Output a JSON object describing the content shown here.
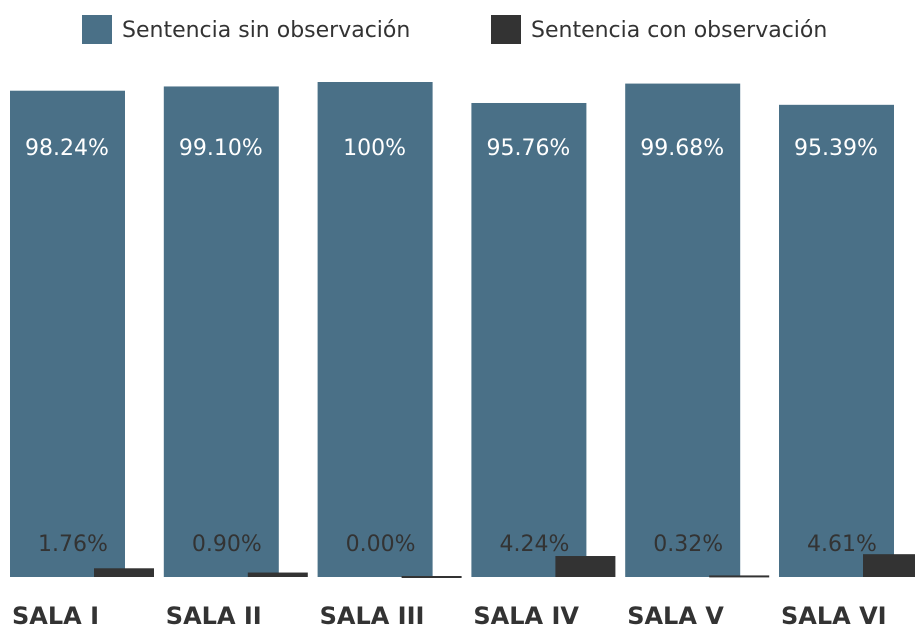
{
  "chart_data": {
    "type": "bar",
    "categories": [
      "SALA I",
      "SALA II",
      "SALA III",
      "SALA IV",
      "SALA V",
      "SALA VI"
    ],
    "series": [
      {
        "name": "Sentencia sin observación",
        "color": "#4a7087",
        "values": [
          98.24,
          99.1,
          100,
          95.76,
          99.68,
          95.39
        ],
        "value_labels": [
          "98.24%",
          "99.10%",
          "100%",
          "95.76%",
          "99.68%",
          "95.39%"
        ]
      },
      {
        "name": "Sentencia con observación",
        "color": "#333333",
        "values": [
          1.76,
          0.9,
          0.0,
          4.24,
          0.32,
          4.61
        ],
        "value_labels": [
          "1.76%",
          "0.90%",
          "0.00%",
          "4.24%",
          "0.32%",
          "4.61%"
        ]
      }
    ],
    "ylim": [
      0,
      100
    ]
  }
}
